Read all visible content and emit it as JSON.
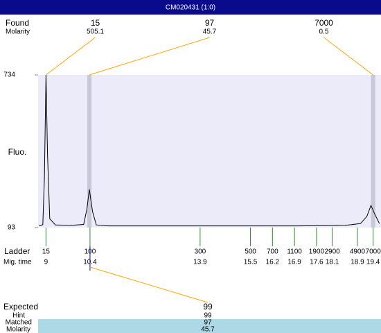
{
  "chart_data": {
    "type": "line",
    "title": "CM020431 (1:0)",
    "y_label": "Fluo.",
    "ylim": [
      93,
      734
    ],
    "yticks": [
      93,
      734
    ],
    "xlim": [
      8.75,
      19.65
    ],
    "color": "#000000",
    "x": [
      8.78,
      8.9,
      8.95,
      9.0,
      9.05,
      9.12,
      9.3,
      9.8,
      10.2,
      10.3,
      10.38,
      10.48,
      10.6,
      11,
      13,
      17,
      18.5,
      19.0,
      19.2,
      19.33,
      19.45,
      19.6
    ],
    "values": [
      100,
      105,
      300,
      734,
      400,
      130,
      104,
      102,
      106,
      170,
      253,
      160,
      104,
      100,
      100,
      100,
      102,
      110,
      140,
      186,
      150,
      110
    ],
    "bands": [
      10.38,
      19.4
    ],
    "found": {
      "label": "Found",
      "molarity_label": "Molarity",
      "sizes": [
        15,
        97,
        7000
      ],
      "molarities": [
        505.1,
        45.7,
        0.5
      ],
      "x": [
        9.0,
        10.38,
        19.4
      ]
    },
    "ladder": {
      "label": "Ladder",
      "time_label": "Mig. time",
      "sizes": [
        15,
        100,
        300,
        500,
        700,
        1100,
        1900,
        2900,
        4900,
        7000
      ],
      "times": [
        9,
        10.4,
        13.9,
        15.5,
        16.2,
        16.9,
        17.6,
        18.1,
        18.9,
        19.4
      ]
    },
    "expected": {
      "label": "Expected",
      "value": 99,
      "hint_label": "Hint",
      "hint": 99,
      "matched_label": "Matched",
      "matched": 97,
      "molarity_label": "Molarity",
      "molarity": 45.7,
      "ladder_index": 1
    }
  }
}
